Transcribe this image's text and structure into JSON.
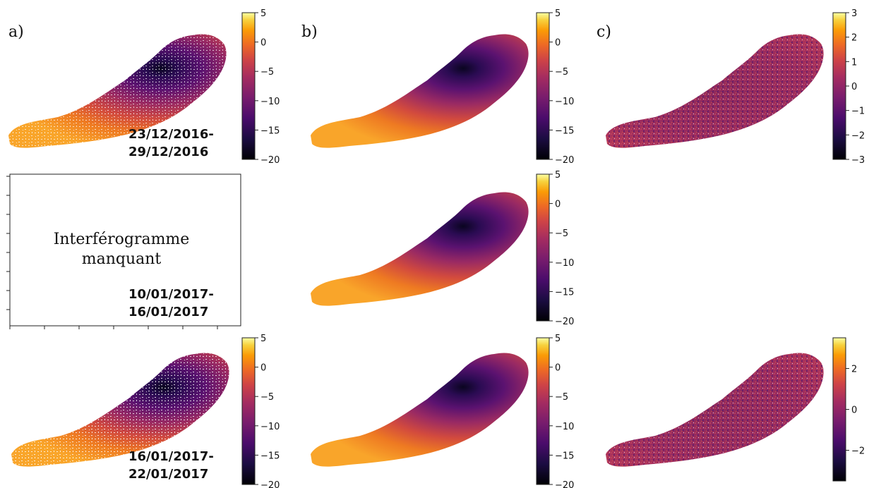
{
  "panel_labels": {
    "a": "a)",
    "b": "b)",
    "c": "c)"
  },
  "date_labels": {
    "row1_start": "23/12/2016-",
    "row1_end": "29/12/2016",
    "row2_start": "10/01/2017-",
    "row2_end": "16/01/2017",
    "row3_start": "16/01/2017-",
    "row3_end": "22/01/2017"
  },
  "missing_panel": {
    "line1": "Interférogramme",
    "line2": "manquant"
  },
  "colormap": "inferno",
  "colorbars": {
    "a1": {
      "min": -20,
      "max": 5,
      "ticks": [
        "5",
        "0",
        "−5",
        "−10",
        "−15",
        "−20"
      ]
    },
    "b1": {
      "min": -20,
      "max": 5,
      "ticks": [
        "5",
        "0",
        "−5",
        "−10",
        "−15",
        "−20"
      ]
    },
    "c1": {
      "min": -3,
      "max": 3,
      "ticks": [
        "3",
        "2",
        "1",
        "0",
        "−1",
        "−2",
        "−3"
      ]
    },
    "b2": {
      "min": -20,
      "max": 5,
      "ticks": [
        "5",
        "0",
        "−5",
        "−10",
        "−15",
        "−20"
      ]
    },
    "a3": {
      "min": -20,
      "max": 5,
      "ticks": [
        "5",
        "0",
        "−5",
        "−10",
        "−15",
        "−20"
      ]
    },
    "b3": {
      "min": -20,
      "max": 5,
      "ticks": [
        "5",
        "0",
        "−5",
        "−10",
        "−15",
        "−20"
      ]
    },
    "c3": {
      "min": -3.5,
      "max": 3.5,
      "ticks": [
        "2",
        "0",
        "−2"
      ]
    }
  }
}
